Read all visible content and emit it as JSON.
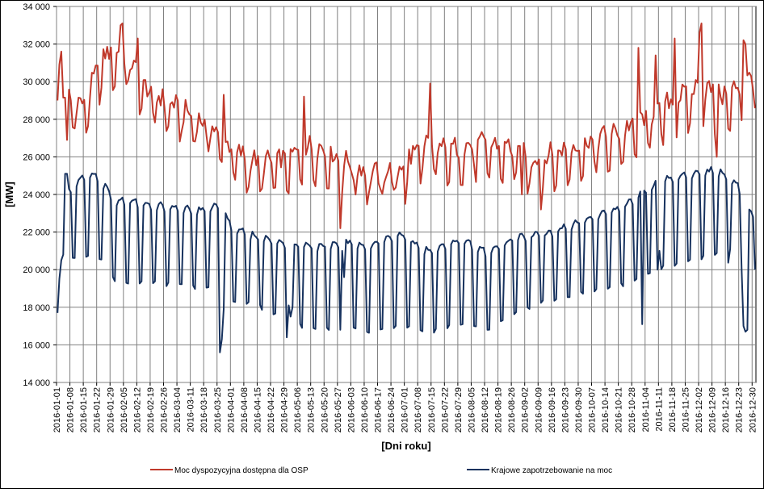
{
  "chart_data": {
    "type": "line",
    "ylabel": "[MW]",
    "xlabel": "[Dni roku]",
    "ylim": [
      14000,
      34000
    ],
    "y_ticks": [
      14000,
      16000,
      18000,
      20000,
      22000,
      24000,
      26000,
      28000,
      30000,
      32000,
      34000
    ],
    "y_tick_labels": [
      "14 000",
      "16 000",
      "18 000",
      "20 000",
      "22 000",
      "24 000",
      "26 000",
      "28 000",
      "30 000",
      "32 000",
      "34 000"
    ],
    "x_tick_labels": [
      "2016-01-01",
      "2016-01-08",
      "2016-01-15",
      "2016-01-22",
      "2016-01-29",
      "2016-02-05",
      "2016-02-12",
      "2016-02-19",
      "2016-02-26",
      "2016-03-04",
      "2016-03-11",
      "2016-03-18",
      "2016-03-25",
      "2016-04-01",
      "2016-04-08",
      "2016-04-15",
      "2016-04-22",
      "2016-04-29",
      "2016-05-06",
      "2016-05-13",
      "2016-05-20",
      "2016-05-27",
      "2016-06-03",
      "2016-06-10",
      "2016-06-17",
      "2016-06-24",
      "2016-07-01",
      "2016-07-08",
      "2016-07-15",
      "2016-07-22",
      "2016-07-29",
      "2016-08-05",
      "2016-08-12",
      "2016-08-19",
      "2016-08-26",
      "2016-09-02",
      "2016-09-09",
      "2016-09-16",
      "2016-09-23",
      "2016-09-30",
      "2016-10-07",
      "2016-10-14",
      "2016-10-21",
      "2016-10-28",
      "2016-11-04",
      "2016-11-11",
      "2016-11-18",
      "2016-11-25",
      "2016-12-02",
      "2016-12-09",
      "2016-12-16",
      "2016-12-23",
      "2016-12-30"
    ],
    "grid": true,
    "legend_position": "bottom",
    "series": [
      {
        "name": "Moc dyspozycyjna dostępna dla OSP",
        "color": "#c0392b",
        "anchors": [
          {
            "day": 0,
            "wd": 29600,
            "we": 28000
          },
          {
            "day": 14,
            "wd": 28900,
            "we": 27200
          },
          {
            "day": 24,
            "wd": 31500,
            "we": 29800
          },
          {
            "day": 34,
            "wd": 31800,
            "we": 30000
          },
          {
            "day": 48,
            "wd": 29500,
            "we": 28000
          },
          {
            "day": 62,
            "wd": 28800,
            "we": 27300
          },
          {
            "day": 80,
            "wd": 27700,
            "we": 26500
          },
          {
            "day": 92,
            "wd": 26400,
            "we": 24700
          },
          {
            "day": 106,
            "wd": 25800,
            "we": 24000
          },
          {
            "day": 120,
            "wd": 26000,
            "we": 24400
          },
          {
            "day": 134,
            "wd": 26800,
            "we": 25000
          },
          {
            "day": 148,
            "wd": 26000,
            "we": 24600
          },
          {
            "day": 165,
            "wd": 25200,
            "we": 23700
          },
          {
            "day": 178,
            "wd": 25400,
            "we": 23900
          },
          {
            "day": 190,
            "wd": 26700,
            "we": 25100
          },
          {
            "day": 205,
            "wd": 26500,
            "we": 24900
          },
          {
            "day": 220,
            "wd": 26800,
            "we": 25100
          },
          {
            "day": 235,
            "wd": 26700,
            "we": 24900
          },
          {
            "day": 248,
            "wd": 26000,
            "we": 24300
          },
          {
            "day": 260,
            "wd": 26300,
            "we": 24500
          },
          {
            "day": 275,
            "wd": 26900,
            "we": 25000
          },
          {
            "day": 290,
            "wd": 27300,
            "we": 25500
          },
          {
            "day": 305,
            "wd": 28000,
            "we": 26000
          },
          {
            "day": 320,
            "wd": 29000,
            "we": 27000
          },
          {
            "day": 335,
            "wd": 29800,
            "we": 27800
          },
          {
            "day": 350,
            "wd": 29500,
            "we": 27200
          },
          {
            "day": 366,
            "wd": 30400,
            "we": 28800
          }
        ],
        "overrides": [
          {
            "day": 1,
            "value": 30900
          },
          {
            "day": 2,
            "value": 31600
          },
          {
            "day": 5,
            "value": 26900
          },
          {
            "day": 33,
            "value": 33000
          },
          {
            "day": 34,
            "value": 33100
          },
          {
            "day": 42,
            "value": 32300
          },
          {
            "day": 87,
            "value": 29300
          },
          {
            "day": 91,
            "value": 26400
          },
          {
            "day": 129,
            "value": 29200
          },
          {
            "day": 148,
            "value": 22200
          },
          {
            "day": 182,
            "value": 23500
          },
          {
            "day": 184,
            "value": 26400
          },
          {
            "day": 195,
            "value": 29900
          },
          {
            "day": 243,
            "value": 24000
          },
          {
            "day": 253,
            "value": 23200
          },
          {
            "day": 304,
            "value": 31800
          },
          {
            "day": 313,
            "value": 31400
          },
          {
            "day": 323,
            "value": 32300
          },
          {
            "day": 336,
            "value": 32600
          },
          {
            "day": 337,
            "value": 33100
          },
          {
            "day": 345,
            "value": 26000
          },
          {
            "day": 348,
            "value": 28800
          },
          {
            "day": 359,
            "value": 32200
          },
          {
            "day": 360,
            "value": 32000
          }
        ]
      },
      {
        "name": "Krajowe zapotrzebowanie na moc",
        "color": "#17325e",
        "anchors": [
          {
            "day": 0,
            "wd": 17700,
            "we": 17700
          },
          {
            "day": 3,
            "wd": 24000,
            "we": 20800
          },
          {
            "day": 10,
            "wd": 24800,
            "we": 20600
          },
          {
            "day": 20,
            "wd": 25200,
            "we": 21000
          },
          {
            "day": 30,
            "wd": 23800,
            "we": 19400
          },
          {
            "day": 45,
            "wd": 23600,
            "we": 19300
          },
          {
            "day": 60,
            "wd": 23400,
            "we": 19200
          },
          {
            "day": 75,
            "wd": 23200,
            "we": 19000
          },
          {
            "day": 84,
            "wd": 23500,
            "we": 19400
          },
          {
            "day": 92,
            "wd": 22300,
            "we": 18300
          },
          {
            "day": 105,
            "wd": 21800,
            "we": 18100
          },
          {
            "day": 120,
            "wd": 21500,
            "we": 17200
          },
          {
            "day": 135,
            "wd": 21300,
            "we": 16800
          },
          {
            "day": 150,
            "wd": 21500,
            "we": 16900
          },
          {
            "day": 165,
            "wd": 21400,
            "we": 16700
          },
          {
            "day": 178,
            "wd": 22000,
            "we": 17000
          },
          {
            "day": 195,
            "wd": 21000,
            "we": 16700
          },
          {
            "day": 210,
            "wd": 21700,
            "we": 17100
          },
          {
            "day": 225,
            "wd": 21000,
            "we": 16800
          },
          {
            "day": 240,
            "wd": 21800,
            "we": 17800
          },
          {
            "day": 255,
            "wd": 22000,
            "we": 18300
          },
          {
            "day": 270,
            "wd": 22500,
            "we": 18700
          },
          {
            "day": 285,
            "wd": 23000,
            "we": 19000
          },
          {
            "day": 300,
            "wd": 23700,
            "we": 19300
          },
          {
            "day": 315,
            "wd": 24800,
            "we": 20100
          },
          {
            "day": 330,
            "wd": 25100,
            "we": 20400
          },
          {
            "day": 345,
            "wd": 25400,
            "we": 20800
          },
          {
            "day": 355,
            "wd": 24700,
            "we": 20000
          },
          {
            "day": 366,
            "wd": 22600,
            "we": 20000
          }
        ],
        "overrides": [
          {
            "day": 0,
            "value": 17700
          },
          {
            "day": 1,
            "value": 19500
          },
          {
            "day": 2,
            "value": 20500
          },
          {
            "day": 3,
            "value": 20800
          },
          {
            "day": 4,
            "value": 25100
          },
          {
            "day": 5,
            "value": 25100
          },
          {
            "day": 85,
            "value": 15600
          },
          {
            "day": 86,
            "value": 16300
          },
          {
            "day": 87,
            "value": 17900
          },
          {
            "day": 90,
            "value": 22600
          },
          {
            "day": 120,
            "value": 16400
          },
          {
            "day": 121,
            "value": 18100
          },
          {
            "day": 122,
            "value": 17500
          },
          {
            "day": 123,
            "value": 18000
          },
          {
            "day": 149,
            "value": 21000
          },
          {
            "day": 150,
            "value": 19600
          },
          {
            "day": 306,
            "value": 17100
          },
          {
            "day": 314,
            "value": 20000
          },
          {
            "day": 315,
            "value": 21000
          },
          {
            "day": 352,
            "value": 21100
          },
          {
            "day": 359,
            "value": 17000
          },
          {
            "day": 360,
            "value": 16700
          },
          {
            "day": 361,
            "value": 16800
          },
          {
            "day": 362,
            "value": 23200
          },
          {
            "day": 363,
            "value": 23100
          },
          {
            "day": 364,
            "value": 22800
          },
          {
            "day": 365,
            "value": 20000
          }
        ]
      }
    ]
  }
}
